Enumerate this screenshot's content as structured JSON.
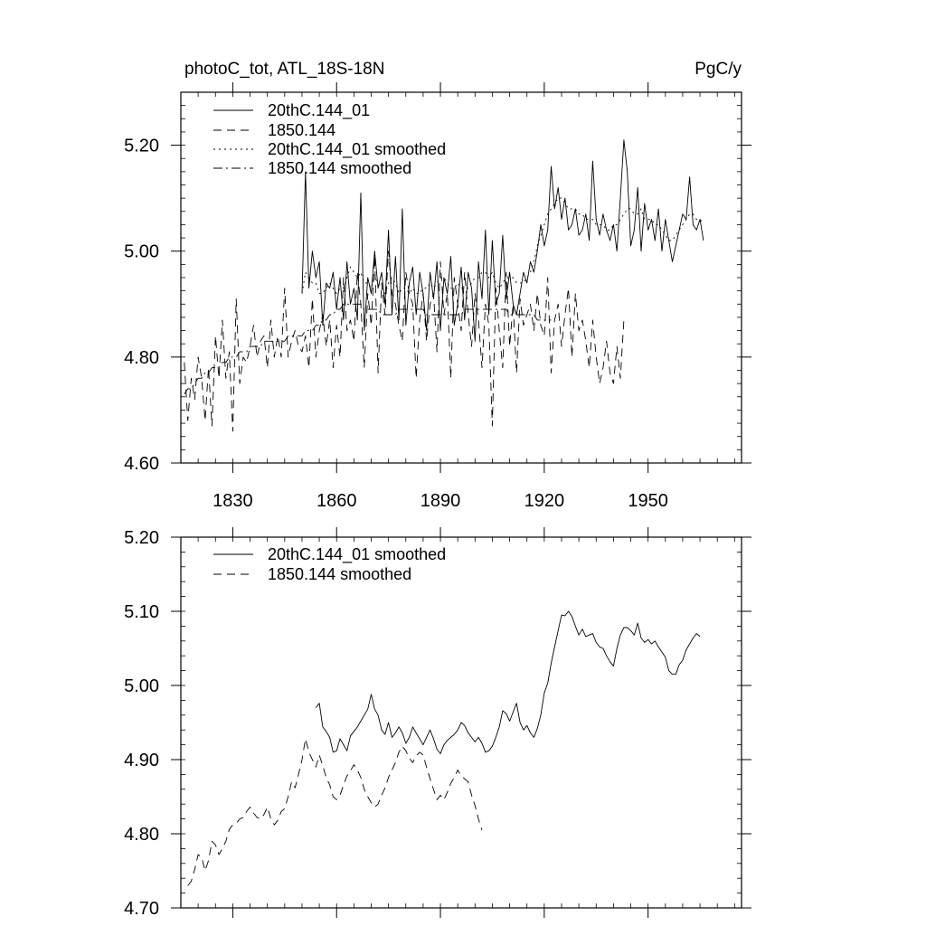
{
  "chart_data": [
    {
      "type": "line",
      "title": "photoC_tot, ATL_18S-18N",
      "units": "PgC/y",
      "xlim": [
        1815,
        1977
      ],
      "ylim": [
        4.6,
        5.3
      ],
      "xticks": [
        1830,
        1860,
        1890,
        1920,
        1950
      ],
      "xtick_labels": [
        "1830",
        "1860",
        "1890",
        "1920",
        "1950"
      ],
      "yticks": [
        4.6,
        4.8,
        5.0,
        5.2
      ],
      "ytick_labels": [
        "4.60",
        "4.80",
        "5.00",
        "5.20"
      ],
      "legend": [
        "20thC.144_01",
        "1850.144",
        "20thC.144_01 smoothed",
        "1850.144 smoothed"
      ],
      "series": [
        {
          "name": "20thC.144_01",
          "style": "solid",
          "x_start": 1850,
          "values": [
            4.92,
            5.15,
            4.93,
            5.0,
            4.95,
            4.98,
            4.86,
            4.94,
            4.93,
            4.96,
            4.89,
            4.95,
            4.87,
            4.98,
            4.9,
            4.93,
            4.87,
            5.11,
            4.85,
            4.95,
            4.92,
            5.0,
            4.93,
            4.96,
            4.9,
            5.04,
            4.88,
            4.99,
            4.87,
            5.08,
            4.86,
            4.94,
            4.97,
            4.88,
            4.96,
            4.92,
            4.85,
            4.96,
            4.91,
            4.98,
            4.85,
            4.95,
            4.92,
            4.99,
            4.86,
            4.9,
            4.97,
            4.87,
            4.96,
            4.93,
            4.83,
            4.98,
            4.91,
            5.04,
            4.88,
            5.02,
            4.9,
            4.92,
            5.03,
            4.91,
            4.96,
            4.9,
            4.88,
            4.92,
            4.96,
            4.94,
            4.98,
            4.96,
            5.0,
            5.05,
            5.01,
            5.04,
            5.16,
            5.08,
            5.12,
            5.06,
            5.1,
            5.04,
            5.05,
            5.08,
            5.03,
            5.04,
            5.07,
            5.02,
            5.17,
            5.06,
            5.03,
            5.07,
            5.04,
            5.02,
            5.05,
            5.0,
            5.1,
            5.21,
            5.15,
            5.01,
            5.04,
            5.12,
            5.0,
            5.09,
            5.04,
            5.06,
            5.02,
            5.08,
            5.0,
            5.06,
            5.02,
            4.98,
            5.01,
            5.04,
            5.07,
            5.06,
            5.14,
            5.05,
            5.04,
            5.06,
            5.02
          ]
        },
        {
          "name": "1850.144",
          "style": "dashed",
          "x_start": 1816,
          "values": [
            4.79,
            4.68,
            4.76,
            4.72,
            4.8,
            4.76,
            4.68,
            4.78,
            4.67,
            4.84,
            4.76,
            4.87,
            4.76,
            4.81,
            4.66,
            4.91,
            4.75,
            4.8,
            4.79,
            4.82,
            4.86,
            4.8,
            4.83,
            4.84,
            4.78,
            4.87,
            4.8,
            4.84,
            4.8,
            4.93,
            4.8,
            4.83,
            4.85,
            4.82,
            4.81,
            4.84,
            4.78,
            4.91,
            4.8,
            4.85,
            4.88,
            4.82,
            4.87,
            4.78,
            4.86,
            4.8,
            4.95,
            4.85,
            4.87,
            4.83,
            4.96,
            4.9,
            4.78,
            4.92,
            4.86,
            4.99,
            4.77,
            4.94,
            4.88,
            5.0,
            4.92,
            4.9,
            4.86,
            4.83,
            4.96,
            4.92,
            4.9,
            4.76,
            4.87,
            4.92,
            4.83,
            4.9,
            4.92,
            4.81,
            4.98,
            4.88,
            4.92,
            4.76,
            4.95,
            4.9,
            4.85,
            4.96,
            4.88,
            4.82,
            4.92,
            4.87,
            4.78,
            4.9,
            4.86,
            4.67,
            4.93,
            4.85,
            4.78,
            4.96,
            4.82,
            4.9,
            4.77,
            4.91,
            4.86,
            4.88,
            4.9,
            4.85,
            4.92,
            4.86,
            4.84,
            4.95,
            4.77,
            4.87,
            4.9,
            4.82,
            4.88,
            4.93,
            4.8,
            4.92,
            4.85,
            4.87,
            4.83,
            4.78,
            4.87,
            4.8,
            4.75,
            4.78,
            4.83,
            4.77,
            4.75,
            4.82,
            4.76,
            4.87
          ]
        },
        {
          "name": "20thC.144_01 smoothed",
          "style": "dotted",
          "x_start": 1850,
          "values": [
            4.92,
            4.96,
            4.95,
            4.94,
            4.94,
            4.92,
            4.92,
            4.93,
            4.94,
            4.93,
            4.92,
            4.93,
            4.93,
            4.95,
            4.97,
            4.96,
            4.95,
            4.96,
            4.94,
            4.94,
            4.93,
            4.95,
            4.94,
            4.93,
            4.92,
            4.94,
            4.95,
            4.94,
            4.92,
            4.93,
            4.93,
            4.92,
            4.93,
            4.92,
            4.92,
            4.93,
            4.93,
            4.94,
            4.93,
            4.94,
            4.95,
            4.95,
            4.94,
            4.93,
            4.93,
            4.94,
            4.93,
            4.93,
            4.93,
            4.94,
            4.95,
            4.95,
            4.96,
            4.96,
            4.95,
            4.96,
            4.94,
            4.93,
            4.94,
            4.95,
            4.95,
            4.95,
            4.94,
            4.94,
            4.94,
            4.95,
            4.96,
            4.98,
            5.01,
            5.03,
            5.05,
            5.07,
            5.08,
            5.09,
            5.1,
            5.1,
            5.09,
            5.08,
            5.08,
            5.08,
            5.07,
            5.07,
            5.06,
            5.06,
            5.06,
            5.05,
            5.05,
            5.05,
            5.04,
            5.04,
            5.05,
            5.05,
            5.06,
            5.07,
            5.08,
            5.08,
            5.07,
            5.07,
            5.08,
            5.06,
            5.06,
            5.06,
            5.05,
            5.05,
            5.04,
            5.03,
            5.02,
            5.02,
            5.03,
            5.04,
            5.05,
            5.06,
            5.07,
            5.07,
            5.06,
            5.06,
            5.05
          ]
        },
        {
          "name": "1850.144 smoothed",
          "style": "dashdot",
          "x_start": 1816,
          "values": [
            4.73,
            4.74,
            4.74,
            4.75,
            4.76,
            4.76,
            4.77,
            4.77,
            4.78,
            4.78,
            4.78,
            4.79,
            4.79,
            4.8,
            4.8,
            4.8,
            4.81,
            4.81,
            4.81,
            4.82,
            4.82,
            4.82,
            4.82,
            4.83,
            4.83,
            4.83,
            4.83,
            4.83,
            4.83,
            4.83,
            4.84,
            4.84,
            4.84,
            4.84,
            4.84,
            4.85,
            4.85,
            4.85,
            4.86,
            4.86,
            4.87,
            4.87,
            4.88,
            4.88,
            4.89,
            4.89,
            4.9,
            4.9,
            4.9,
            4.9,
            4.9,
            4.9,
            4.89,
            4.89,
            4.89,
            4.89,
            4.89,
            4.88,
            4.88,
            4.88,
            4.88,
            4.88,
            4.89,
            4.89,
            4.89,
            4.89,
            4.89,
            4.89,
            4.89,
            4.89,
            4.88,
            4.88,
            4.88,
            4.88,
            4.88,
            4.88,
            4.88,
            4.88,
            4.88,
            4.88,
            4.88,
            4.89,
            4.89,
            4.89,
            4.89,
            4.89,
            4.89,
            4.89,
            4.89,
            4.89,
            4.89,
            4.89,
            4.89,
            4.89,
            4.88,
            4.88,
            4.88,
            4.88,
            4.88,
            4.88,
            4.88,
            4.88,
            4.87,
            4.87,
            4.87,
            4.87,
            4.87
          ]
        }
      ]
    },
    {
      "type": "line",
      "title": "",
      "xlim": [
        1815,
        1977
      ],
      "ylim": [
        4.7,
        5.2
      ],
      "xticks": [
        1830,
        1860,
        1890,
        1920,
        1950
      ],
      "xtick_labels": [],
      "yticks": [
        4.7,
        4.8,
        4.9,
        5.0,
        5.1,
        5.2
      ],
      "ytick_labels": [
        "4.70",
        "4.80",
        "4.90",
        "5.00",
        "5.10",
        "5.20"
      ],
      "legend": [
        "20thC.144_01 smoothed",
        "1850.144 smoothed"
      ],
      "series": [
        {
          "name": "20thC.144_01 smoothed",
          "style": "solid",
          "x_start": 1854,
          "values": [
            4.97,
            4.976,
            4.944,
            4.938,
            4.93,
            4.91,
            4.912,
            4.928,
            4.92,
            4.912,
            4.932,
            4.938,
            4.944,
            4.952,
            4.96,
            4.968,
            4.988,
            4.968,
            4.96,
            4.94,
            4.934,
            4.95,
            4.93,
            4.936,
            4.944,
            4.936,
            4.922,
            4.93,
            4.944,
            4.936,
            4.928,
            4.92,
            4.93,
            4.94,
            4.928,
            4.914,
            4.908,
            4.92,
            4.926,
            4.93,
            4.934,
            4.94,
            4.95,
            4.946,
            4.936,
            4.93,
            4.924,
            4.93,
            4.922,
            4.91,
            4.912,
            4.918,
            4.93,
            4.944,
            4.966,
            4.962,
            4.952,
            4.964,
            4.976,
            4.95,
            4.94,
            4.946,
            4.936,
            4.93,
            4.942,
            4.96,
            4.99,
            5.003,
            5.03,
            5.052,
            5.074,
            5.095,
            5.094,
            5.1,
            5.093,
            5.08,
            5.068,
            5.076,
            5.066,
            5.068,
            5.07,
            5.058,
            5.052,
            5.05,
            5.04,
            5.032,
            5.026,
            5.05,
            5.068,
            5.078,
            5.078,
            5.074,
            5.068,
            5.084,
            5.064,
            5.058,
            5.062,
            5.056,
            5.06,
            5.052,
            5.045,
            5.038,
            5.02,
            5.015,
            5.015,
            5.028,
            5.034,
            5.048,
            5.056,
            5.064,
            5.07,
            5.066
          ]
        },
        {
          "name": "1850.144 smoothed",
          "style": "dashed",
          "x_start": 1817,
          "values": [
            4.73,
            4.736,
            4.752,
            4.772,
            4.768,
            4.75,
            4.764,
            4.79,
            4.785,
            4.772,
            4.78,
            4.79,
            4.806,
            4.812,
            4.814,
            4.82,
            4.822,
            4.83,
            4.836,
            4.828,
            4.822,
            4.82,
            4.826,
            4.836,
            4.82,
            4.812,
            4.818,
            4.83,
            4.834,
            4.85,
            4.87,
            4.862,
            4.88,
            4.9,
            4.928,
            4.91,
            4.9,
            4.89,
            4.906,
            4.892,
            4.876,
            4.866,
            4.85,
            4.846,
            4.852,
            4.866,
            4.878,
            4.885,
            4.893,
            4.886,
            4.876,
            4.86,
            4.85,
            4.842,
            4.836,
            4.84,
            4.852,
            4.862,
            4.876,
            4.886,
            4.896,
            4.91,
            4.918,
            4.912,
            4.902,
            4.896,
            4.905,
            4.91,
            4.906,
            4.89,
            4.874,
            4.86,
            4.846,
            4.852,
            4.846,
            4.856,
            4.868,
            4.876,
            4.886,
            4.878,
            4.874,
            4.87,
            4.852,
            4.838,
            4.82,
            4.805
          ]
        }
      ]
    }
  ]
}
